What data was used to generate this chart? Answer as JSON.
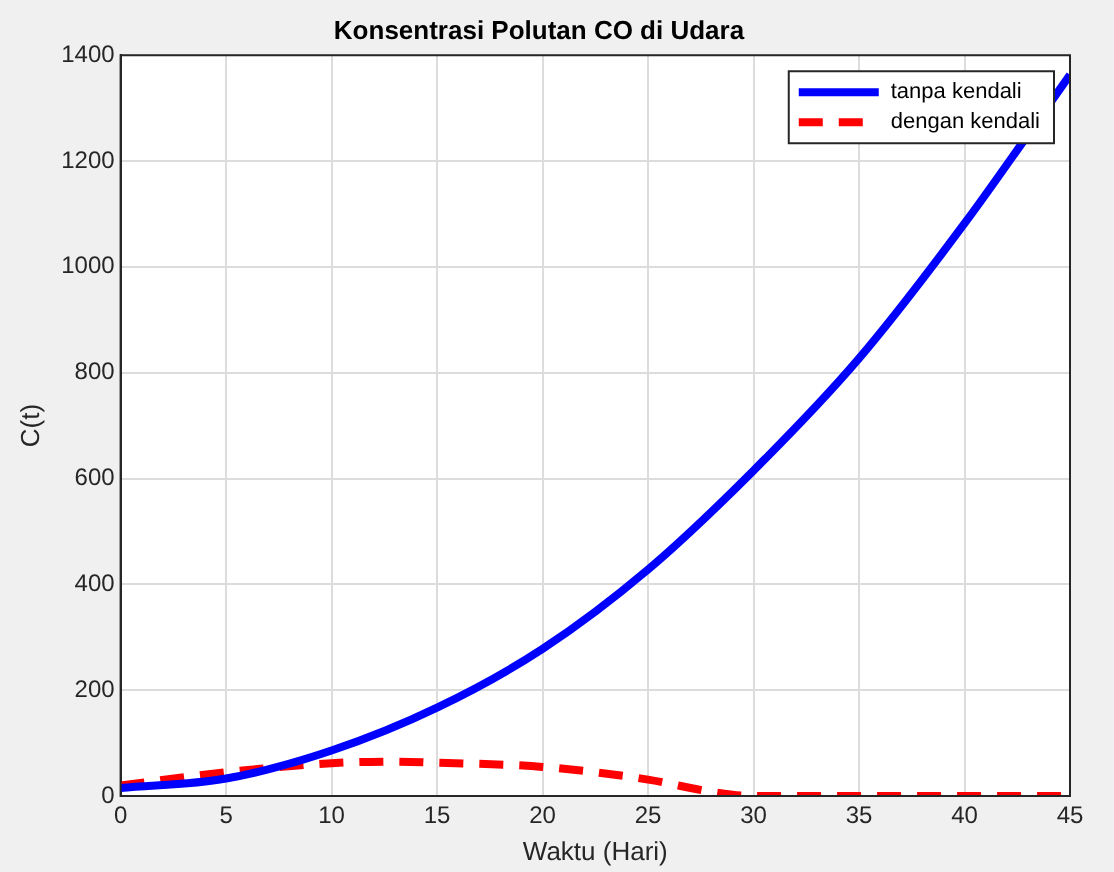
{
  "chart_data": {
    "type": "line",
    "title": "Konsentrasi Polutan CO di Udara",
    "xlabel": "Waktu (Hari)",
    "ylabel": "C(t)",
    "xlim": [
      0,
      45
    ],
    "xticks": [
      0,
      5,
      10,
      15,
      20,
      25,
      30,
      35,
      40,
      45
    ],
    "ylim": [
      0,
      1400
    ],
    "yticks": [
      0,
      200,
      400,
      600,
      800,
      1000,
      1200,
      1400
    ],
    "grid": true,
    "legend": "top right",
    "series": [
      {
        "name": "tanpa kendali",
        "color": "#0000ff",
        "line_style": "solid",
        "x": [
          0,
          5,
          10,
          15,
          20,
          25,
          30,
          35,
          40,
          45
        ],
        "values": [
          15,
          33,
          86,
          167,
          278,
          428,
          615,
          827,
          1082,
          1363
        ]
      },
      {
        "name": "dengan kendali",
        "color": "#ff0000",
        "line_style": "dashed",
        "x": [
          0,
          5,
          10,
          13,
          15,
          20,
          25,
          28,
          30,
          35,
          40,
          45
        ],
        "values": [
          20,
          45,
          62,
          65,
          63,
          55,
          31,
          8,
          0,
          0,
          0,
          0
        ]
      }
    ]
  }
}
